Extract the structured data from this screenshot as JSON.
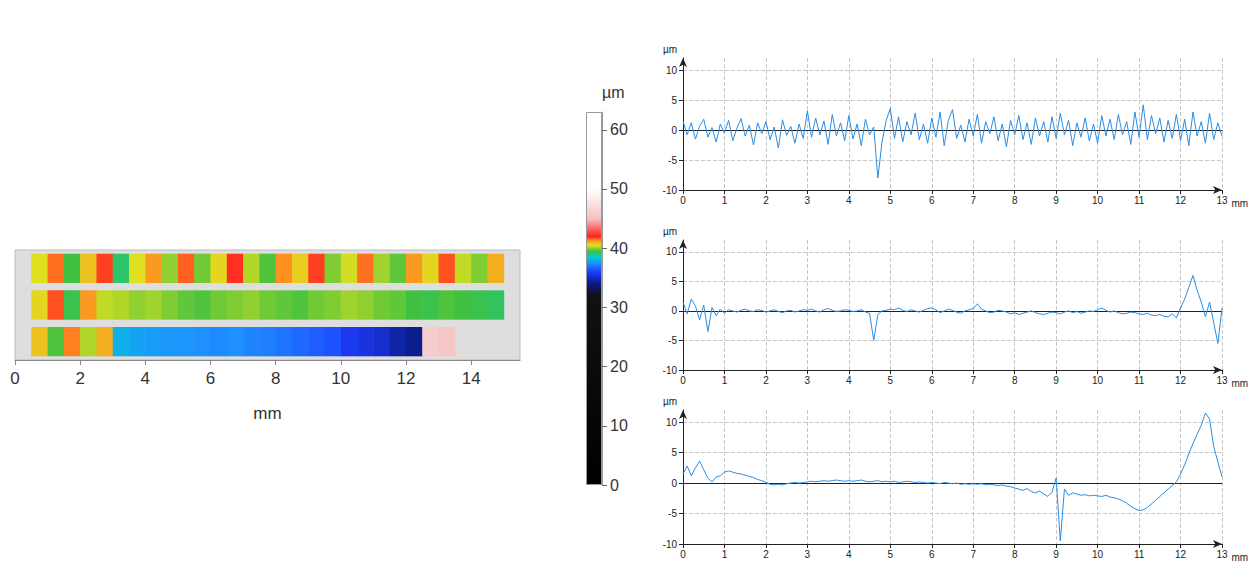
{
  "chart_data": [
    {
      "type": "heatmap",
      "xlabel": "mm",
      "xlim": [
        0,
        15.5
      ],
      "xticks": [
        0,
        2,
        4,
        6,
        8,
        10,
        12,
        14
      ],
      "tick_labels": "x",
      "cell_edges": [
        0.5,
        1,
        1.5,
        2,
        2.5,
        3,
        3.5,
        4,
        4.5,
        5,
        5.5,
        6,
        6.5,
        7,
        7.5,
        8,
        8.5,
        9,
        9.5,
        10,
        10.5,
        11,
        11.5,
        12,
        12.5,
        13,
        13.5,
        14,
        14.5,
        15
      ],
      "cells": [
        [
          40.5,
          41.5,
          39.5,
          40.8,
          41.8,
          39.2,
          40.5,
          41.2,
          40,
          41.6,
          39.8,
          40.6,
          41.9,
          40.2,
          39.6,
          41.3,
          40.7,
          41.8,
          39.9,
          40.4,
          41.5,
          40.1,
          39.7,
          41.2,
          40.6,
          41.7,
          40.3,
          39.9,
          41.0
        ],
        [
          40.6,
          41.7,
          39.4,
          41.2,
          40.3,
          40.2,
          40.0,
          40.1,
          39.9,
          39.7,
          39.6,
          39.8,
          39.9,
          40.0,
          39.8,
          39.7,
          39.6,
          39.8,
          39.9,
          40.1,
          40.0,
          39.8,
          39.7,
          39.5,
          39.4,
          39.6,
          39.5,
          39.4,
          39.3
        ],
        [
          40.8,
          39.6,
          41.4,
          40.2,
          41.0,
          38.0,
          37.8,
          37.7,
          37.6,
          37.6,
          37.5,
          37.4,
          37.5,
          37.3,
          37.2,
          37.0,
          36.8,
          36.6,
          36.4,
          35.8,
          35.5,
          35.2,
          34.6,
          34.2,
          46.0,
          45.5,
          null,
          null,
          null
        ]
      ],
      "colorbar": {
        "label": "µm",
        "range": [
          0,
          63
        ],
        "ticks": [
          0,
          10,
          20,
          30,
          40,
          50,
          60
        ],
        "stops": [
          [
            0,
            "#000000"
          ],
          [
            32,
            "#111111"
          ],
          [
            34,
            "#0a1a80"
          ],
          [
            36,
            "#1e3cff"
          ],
          [
            37.5,
            "#1e90ff"
          ],
          [
            38.5,
            "#00d0d0"
          ],
          [
            39.5,
            "#40c040"
          ],
          [
            40.5,
            "#e0e020"
          ],
          [
            41.3,
            "#ff9020"
          ],
          [
            42,
            "#ff2020"
          ],
          [
            45,
            "#f4c0c0"
          ],
          [
            50,
            "#ffffff"
          ],
          [
            63,
            "#ffffff"
          ]
        ]
      }
    },
    {
      "type": "line",
      "xlabel": "mm",
      "ylabel": "µm",
      "xlim": [
        0,
        13
      ],
      "xticks": [
        0,
        1,
        2,
        3,
        4,
        5,
        6,
        7,
        8,
        9,
        10,
        11,
        12,
        13
      ],
      "ylim": [
        -10,
        12
      ],
      "yticks": [
        -10,
        -5,
        0,
        5,
        10
      ],
      "grid": true,
      "color": "#2b8de3",
      "x": [
        0,
        0.1,
        0.2,
        0.3,
        0.4,
        0.5,
        0.6,
        0.7,
        0.8,
        0.9,
        1,
        1.1,
        1.2,
        1.3,
        1.4,
        1.5,
        1.6,
        1.7,
        1.8,
        1.9,
        2,
        2.1,
        2.2,
        2.3,
        2.4,
        2.5,
        2.6,
        2.7,
        2.8,
        2.9,
        3,
        3.1,
        3.2,
        3.3,
        3.4,
        3.5,
        3.6,
        3.7,
        3.8,
        3.9,
        4,
        4.1,
        4.2,
        4.3,
        4.4,
        4.5,
        4.6,
        4.7,
        4.8,
        4.9,
        5,
        5.1,
        5.2,
        5.3,
        5.4,
        5.5,
        5.6,
        5.7,
        5.8,
        5.9,
        6,
        6.1,
        6.2,
        6.3,
        6.4,
        6.5,
        6.6,
        6.7,
        6.8,
        6.9,
        7,
        7.1,
        7.2,
        7.3,
        7.4,
        7.5,
        7.6,
        7.7,
        7.8,
        7.9,
        8,
        8.1,
        8.2,
        8.3,
        8.4,
        8.5,
        8.6,
        8.7,
        8.8,
        8.9,
        9,
        9.1,
        9.2,
        9.3,
        9.4,
        9.5,
        9.6,
        9.7,
        9.8,
        9.9,
        10,
        10.1,
        10.2,
        10.3,
        10.4,
        10.5,
        10.6,
        10.7,
        10.8,
        10.9,
        11,
        11.1,
        11.2,
        11.3,
        11.4,
        11.5,
        11.6,
        11.7,
        11.8,
        11.9,
        12,
        12.1,
        12.2,
        12.3,
        12.4,
        12.5,
        12.6,
        12.7,
        12.8,
        12.9,
        13
      ],
      "values": [
        1.5,
        -0.8,
        1.2,
        -1.5,
        0.6,
        1.8,
        -1.2,
        0.4,
        -2.0,
        1.0,
        -0.5,
        1.6,
        -1.8,
        0.3,
        1.9,
        -1.0,
        0.8,
        -2.5,
        1.2,
        -0.6,
        1.4,
        -1.6,
        0.5,
        -3.0,
        1.7,
        -0.9,
        0.6,
        -2.2,
        1.0,
        -1.4,
        3.2,
        -1.2,
        2.0,
        -0.8,
        1.5,
        -2.4,
        2.6,
        -1.0,
        1.2,
        -1.8,
        2.4,
        -1.5,
        1.0,
        -2.6,
        1.8,
        -0.8,
        0.5,
        -8.0,
        -2.0,
        1.6,
        3.6,
        -1.4,
        2.2,
        -2.0,
        1.4,
        -0.8,
        2.8,
        -1.6,
        1.0,
        -2.2,
        2.0,
        -1.2,
        3.0,
        -2.6,
        1.6,
        3.4,
        -1.4,
        0.8,
        -2.0,
        1.8,
        -1.0,
        2.6,
        -2.2,
        1.4,
        -0.6,
        2.2,
        -1.8,
        1.0,
        -2.8,
        1.6,
        -0.8,
        2.4,
        -1.6,
        1.2,
        -2.4,
        2.0,
        -1.0,
        1.4,
        -2.0,
        2.2,
        -1.4,
        2.8,
        -0.8,
        1.6,
        -2.6,
        1.2,
        -1.2,
        2.0,
        -1.8,
        1.0,
        -2.2,
        2.4,
        -1.0,
        1.8,
        -1.6,
        2.6,
        -0.8,
        1.4,
        -2.4,
        3.0,
        -1.2,
        4.2,
        -1.6,
        2.4,
        -0.6,
        2.0,
        -2.0,
        1.6,
        -1.4,
        2.6,
        -1.8,
        1.8,
        -2.6,
        3.0,
        -1.0,
        1.4,
        -2.2,
        2.8,
        -1.6,
        1.2,
        -1.0
      ]
    },
    {
      "type": "line",
      "xlabel": "mm",
      "ylabel": "µm",
      "xlim": [
        0,
        13
      ],
      "xticks": [
        0,
        1,
        2,
        3,
        4,
        5,
        6,
        7,
        8,
        9,
        10,
        11,
        12,
        13
      ],
      "ylim": [
        -10,
        12
      ],
      "yticks": [
        -10,
        -5,
        0,
        5,
        10
      ],
      "grid": true,
      "color": "#2b8de3",
      "x": [
        0,
        0.1,
        0.2,
        0.3,
        0.4,
        0.5,
        0.6,
        0.7,
        0.8,
        0.9,
        1,
        1.1,
        1.2,
        1.3,
        1.4,
        1.5,
        1.6,
        1.7,
        1.8,
        1.9,
        2,
        2.1,
        2.2,
        2.3,
        2.4,
        2.5,
        2.6,
        2.7,
        2.8,
        2.9,
        3,
        3.1,
        3.2,
        3.3,
        3.4,
        3.5,
        3.6,
        3.7,
        3.8,
        3.9,
        4,
        4.1,
        4.2,
        4.3,
        4.4,
        4.5,
        4.6,
        4.7,
        4.8,
        4.9,
        5,
        5.1,
        5.2,
        5.3,
        5.4,
        5.5,
        5.6,
        5.7,
        5.8,
        5.9,
        6,
        6.1,
        6.2,
        6.3,
        6.4,
        6.5,
        6.6,
        6.7,
        6.8,
        6.9,
        7,
        7.1,
        7.2,
        7.3,
        7.4,
        7.5,
        7.6,
        7.7,
        7.8,
        7.9,
        8,
        8.1,
        8.2,
        8.3,
        8.4,
        8.5,
        8.6,
        8.7,
        8.8,
        8.9,
        9,
        9.1,
        9.2,
        9.3,
        9.4,
        9.5,
        9.6,
        9.7,
        9.8,
        9.9,
        10,
        10.1,
        10.2,
        10.3,
        10.4,
        10.5,
        10.6,
        10.7,
        10.8,
        10.9,
        11,
        11.1,
        11.2,
        11.3,
        11.4,
        11.5,
        11.6,
        11.7,
        11.8,
        11.9,
        12,
        12.1,
        12.2,
        12.3,
        12.4,
        12.5,
        12.6,
        12.7,
        12.8,
        12.9,
        13
      ],
      "values": [
        1.5,
        -0.5,
        2.0,
        0.8,
        -1.5,
        1.0,
        -3.5,
        0.6,
        -0.8,
        0.3,
        -0.4,
        0.2,
        0.0,
        -0.2,
        0.1,
        0.3,
        0.0,
        -0.1,
        0.2,
        0.1,
        -0.2,
        0.0,
        0.2,
        -0.1,
        -0.3,
        0.0,
        0.1,
        -0.2,
        0.0,
        0.2,
        0.1,
        0.3,
        0.0,
        -0.2,
        0.2,
        0.4,
        0.1,
        -0.1,
        0.0,
        0.2,
        0.1,
        -0.1,
        0.0,
        0.2,
        -0.2,
        -0.4,
        -5.0,
        -0.6,
        0.0,
        0.1,
        0.3,
        0.2,
        0.5,
        0.1,
        -0.1,
        0.2,
        0.0,
        -0.2,
        0.1,
        0.4,
        0.5,
        0.2,
        -0.3,
        0.0,
        0.3,
        0.1,
        -0.2,
        -0.4,
        0.0,
        0.2,
        0.4,
        1.2,
        0.3,
        0.0,
        -0.3,
        -0.2,
        0.1,
        0.0,
        -0.2,
        -0.5,
        -0.3,
        -0.6,
        -0.4,
        -0.2,
        0.0,
        -0.3,
        -0.5,
        -0.6,
        -0.4,
        -0.2,
        -0.3,
        -0.5,
        -0.2,
        0.0,
        -0.3,
        -0.1,
        -0.4,
        -0.2,
        0.0,
        -0.1,
        0.2,
        0.5,
        0.1,
        -0.2,
        0.0,
        -0.3,
        -0.5,
        -0.4,
        -0.2,
        -0.3,
        -0.5,
        -0.6,
        -0.4,
        -0.7,
        -0.8,
        -0.6,
        -0.9,
        -1.0,
        -0.5,
        -1.2,
        0.5,
        2.0,
        4.0,
        6.0,
        3.5,
        1.5,
        -1.0,
        1.5,
        -2.0,
        -5.5,
        0.5
      ]
    },
    {
      "type": "line",
      "xlabel": "mm",
      "ylabel": "µm",
      "xlim": [
        0,
        13
      ],
      "xticks": [
        0,
        1,
        2,
        3,
        4,
        5,
        6,
        7,
        8,
        9,
        10,
        11,
        12,
        13
      ],
      "ylim": [
        -10,
        12
      ],
      "yticks": [
        -10,
        -5,
        0,
        5,
        10
      ],
      "grid": true,
      "color": "#2b8de3",
      "x": [
        0,
        0.1,
        0.2,
        0.3,
        0.4,
        0.5,
        0.6,
        0.7,
        0.8,
        0.9,
        1,
        1.1,
        1.2,
        1.3,
        1.4,
        1.5,
        1.6,
        1.7,
        1.8,
        1.9,
        2,
        2.1,
        2.2,
        2.3,
        2.4,
        2.5,
        2.6,
        2.7,
        2.8,
        2.9,
        3,
        3.1,
        3.2,
        3.3,
        3.4,
        3.5,
        3.6,
        3.7,
        3.8,
        3.9,
        4,
        4.1,
        4.2,
        4.3,
        4.4,
        4.5,
        4.6,
        4.7,
        4.8,
        4.9,
        5,
        5.1,
        5.2,
        5.3,
        5.4,
        5.5,
        5.6,
        5.7,
        5.8,
        5.9,
        6,
        6.1,
        6.2,
        6.3,
        6.4,
        6.5,
        6.6,
        6.7,
        6.8,
        6.9,
        7,
        7.1,
        7.2,
        7.3,
        7.4,
        7.5,
        7.6,
        7.7,
        7.8,
        7.9,
        8,
        8.1,
        8.2,
        8.3,
        8.4,
        8.5,
        8.6,
        8.7,
        8.8,
        8.9,
        9,
        9.1,
        9.2,
        9.3,
        9.4,
        9.5,
        9.6,
        9.7,
        9.8,
        9.9,
        10,
        10.1,
        10.2,
        10.3,
        10.4,
        10.5,
        10.6,
        10.7,
        10.8,
        10.9,
        11,
        11.1,
        11.2,
        11.3,
        11.4,
        11.5,
        11.6,
        11.7,
        11.8,
        11.9,
        12,
        12.1,
        12.2,
        12.3,
        12.4,
        12.5,
        12.6,
        12.7,
        12.8,
        12.9,
        13
      ],
      "values": [
        1.5,
        2.8,
        1.2,
        2.5,
        3.6,
        2.2,
        0.8,
        0.2,
        1.0,
        1.2,
        1.8,
        2.0,
        1.8,
        1.6,
        1.5,
        1.3,
        1.1,
        0.9,
        0.6,
        0.4,
        0.1,
        -0.2,
        -0.3,
        -0.2,
        -0.3,
        -0.1,
        0.0,
        0.1,
        0.0,
        0.1,
        0.2,
        0.3,
        0.2,
        0.3,
        0.4,
        0.3,
        0.4,
        0.5,
        0.4,
        0.3,
        0.4,
        0.3,
        0.4,
        0.5,
        0.3,
        0.2,
        0.3,
        0.4,
        0.2,
        0.3,
        0.2,
        0.3,
        0.1,
        0.2,
        0.3,
        0.2,
        0.1,
        0.2,
        0.1,
        0.0,
        0.1,
        0.0,
        -0.1,
        0.1,
        0.0,
        -0.1,
        0.0,
        -0.2,
        -0.1,
        -0.2,
        -0.1,
        -0.2,
        -0.1,
        -0.3,
        -0.2,
        -0.3,
        -0.4,
        -0.3,
        -0.5,
        -0.6,
        -0.8,
        -1.0,
        -1.2,
        -0.9,
        -1.4,
        -1.6,
        -1.3,
        -1.8,
        -2.2,
        -1.5,
        0.8,
        -9.5,
        -1.0,
        -2.0,
        -1.6,
        -1.8,
        -2.0,
        -1.9,
        -2.1,
        -2.0,
        -2.1,
        -2.2,
        -2.0,
        -2.3,
        -2.4,
        -2.6,
        -2.9,
        -3.3,
        -3.8,
        -4.2,
        -4.5,
        -4.4,
        -4.0,
        -3.4,
        -2.8,
        -2.2,
        -1.6,
        -1.0,
        -0.4,
        0.2,
        1.5,
        3.0,
        4.8,
        6.5,
        8.0,
        9.5,
        11.5,
        10.5,
        6.0,
        3.5,
        1.0
      ]
    }
  ]
}
